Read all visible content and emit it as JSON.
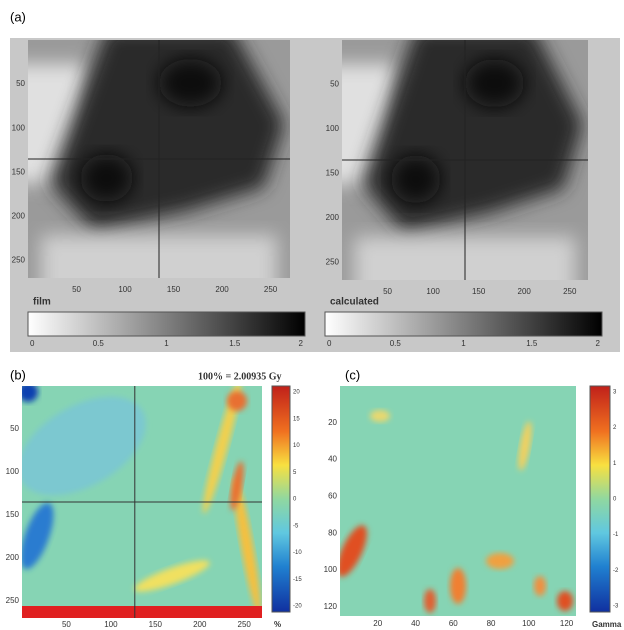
{
  "panel_a": {
    "label": "(a)",
    "images": [
      {
        "caption": "film",
        "yticks": [
          "50",
          "100",
          "150",
          "200",
          "250"
        ],
        "xticks": [
          "50",
          "100",
          "150",
          "200",
          "250"
        ],
        "colorbar_ticks": [
          "0",
          "0.5",
          "1",
          "1.5",
          "2"
        ]
      },
      {
        "caption": "calculated",
        "yticks": [
          "50",
          "100",
          "150",
          "200",
          "250"
        ],
        "xticks": [
          "50",
          "100",
          "150",
          "200",
          "250"
        ],
        "colorbar_ticks": [
          "0",
          "0.5",
          "1",
          "1.5",
          "2"
        ]
      }
    ]
  },
  "panel_b": {
    "label": "(b)",
    "annotation": "100% = 2.00935 Gy",
    "yticks": [
      "50",
      "100",
      "150",
      "200",
      "250"
    ],
    "xticks": [
      "50",
      "100",
      "150",
      "200",
      "250"
    ],
    "colorbar_ticks": [
      "20",
      "15",
      "10",
      "5",
      "0",
      "-5",
      "-10",
      "-15",
      "-20"
    ],
    "colorbar_unit": "%"
  },
  "panel_c": {
    "label": "(c)",
    "yticks": [
      "20",
      "40",
      "60",
      "80",
      "100",
      "120"
    ],
    "xticks": [
      "20",
      "40",
      "60",
      "80",
      "100",
      "120"
    ],
    "colorbar_ticks": [
      "3",
      "2",
      "1",
      "0",
      "-1",
      "-2",
      "-3"
    ],
    "colorbar_unit": "Gamma"
  }
}
